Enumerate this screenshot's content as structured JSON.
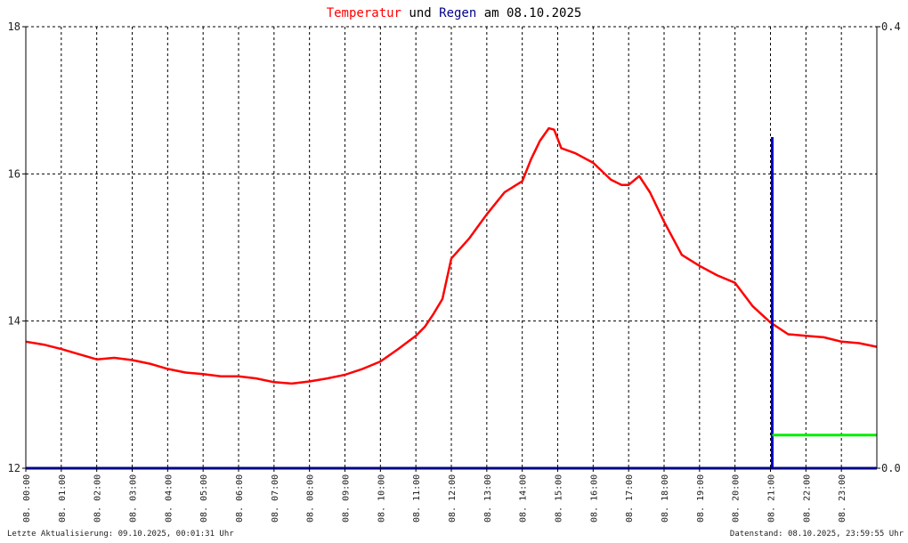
{
  "title_parts": [
    {
      "text": "Temperatur",
      "color": "#ff0000"
    },
    {
      "text": " und ",
      "color": "#000000"
    },
    {
      "text": "Regen",
      "color": "#00008b"
    },
    {
      "text": " am 08.10.2025",
      "color": "#000000"
    }
  ],
  "footer": {
    "left": "Letzte Aktualisierung: 09.10.2025, 00:01:31 Uhr",
    "right": "Datenstand: 08.10.2025, 23:59:55 Uhr"
  },
  "colors": {
    "temperature": "#ff0000",
    "rain_bar": "#0000cc",
    "rain_sum": "#00ee00",
    "axis": "#00008b",
    "grid": "#000000"
  },
  "chart_data": {
    "type": "line",
    "grid": true,
    "y_left": {
      "ylim": [
        12,
        18
      ],
      "ticks": [
        "12",
        "14",
        "16",
        "18"
      ]
    },
    "y_right": {
      "ylim": [
        0.0,
        0.4
      ],
      "ticks": [
        "0.0",
        "0.4"
      ]
    },
    "x_range": [
      0,
      24
    ],
    "x_ticks": [
      "08. 00:00",
      "08. 01:00",
      "08. 02:00",
      "08. 03:00",
      "08. 04:00",
      "08. 05:00",
      "08. 06:00",
      "08. 07:00",
      "08. 08:00",
      "08. 09:00",
      "08. 10:00",
      "08. 11:00",
      "08. 12:00",
      "08. 13:00",
      "08. 14:00",
      "08. 15:00",
      "08. 16:00",
      "08. 17:00",
      "08. 18:00",
      "08. 19:00",
      "08. 20:00",
      "08. 21:00",
      "08. 22:00",
      "08. 23:00"
    ],
    "series": [
      {
        "axis": "left",
        "x": [
          0,
          0.5,
          1,
          1.5,
          2,
          2.5,
          3,
          3.5,
          4,
          4.5,
          5,
          5.5,
          6,
          6.5,
          7,
          7.5,
          8,
          8.5,
          9,
          9.5,
          10,
          10.5,
          11,
          11.25,
          11.5,
          11.75,
          12,
          12.5,
          13,
          13.5,
          14,
          14.25,
          14.5,
          14.75,
          14.9,
          15.1,
          15.5,
          16,
          16.5,
          16.8,
          17,
          17.3,
          17.6,
          18,
          18.5,
          19,
          19.5,
          20,
          20.5,
          21,
          21.5,
          22,
          22.5,
          23,
          23.5,
          24
        ],
        "y": [
          13.72,
          13.68,
          13.62,
          13.55,
          13.48,
          13.5,
          13.47,
          13.42,
          13.35,
          13.3,
          13.28,
          13.25,
          13.25,
          13.22,
          13.17,
          13.15,
          13.18,
          13.22,
          13.27,
          13.35,
          13.45,
          13.62,
          13.8,
          13.92,
          14.1,
          14.3,
          14.85,
          15.12,
          15.45,
          15.75,
          15.9,
          16.2,
          16.45,
          16.62,
          16.6,
          16.35,
          16.28,
          16.15,
          15.92,
          15.85,
          15.85,
          15.97,
          15.75,
          15.35,
          14.9,
          14.75,
          14.62,
          14.52,
          14.2,
          13.98,
          13.82,
          13.8,
          13.78,
          13.72,
          13.7,
          13.65
        ]
      },
      {
        "axis": "right",
        "type": "bar",
        "x": [
          21.05
        ],
        "y": [
          0.3
        ]
      },
      {
        "axis": "right",
        "type": "step",
        "x": [
          21.05,
          24
        ],
        "y": [
          0.03,
          0.03
        ]
      }
    ]
  }
}
